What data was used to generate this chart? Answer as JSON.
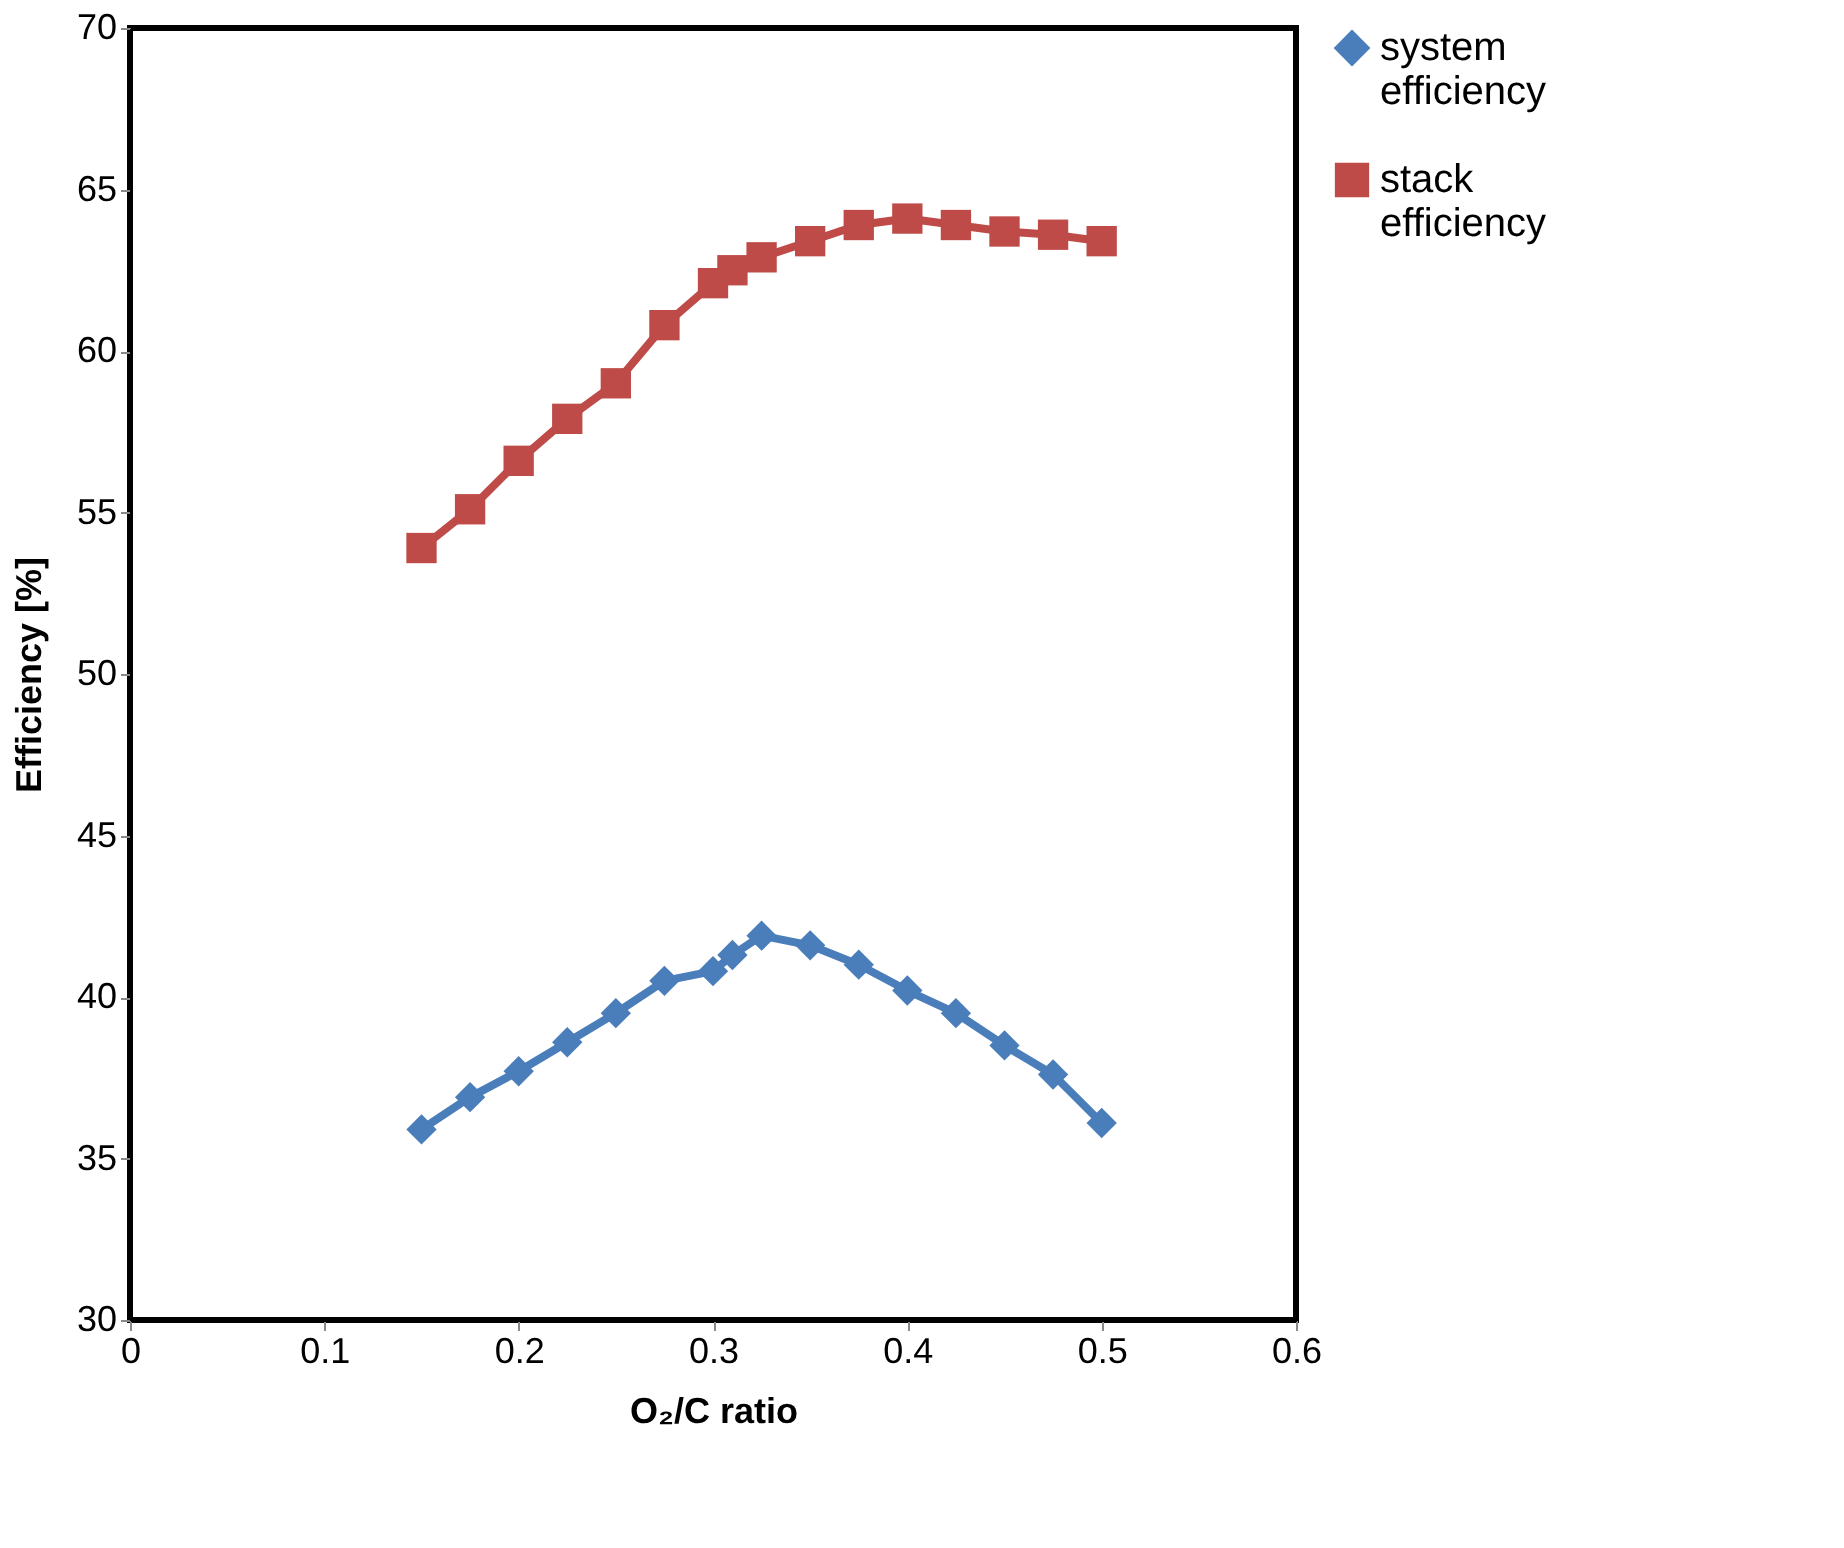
{
  "chart_data": {
    "type": "line",
    "xlabel": "O₂/C ratio",
    "ylabel": "Efficiency [%]",
    "x": [
      0.15,
      0.175,
      0.2,
      0.225,
      0.25,
      0.275,
      0.3,
      0.31,
      0.325,
      0.35,
      0.375,
      0.4,
      0.425,
      0.45,
      0.475,
      0.5
    ],
    "series": [
      {
        "name": "system efficiency",
        "color": "#4a7ebb",
        "marker": "diamond",
        "values": [
          35.9,
          36.9,
          37.7,
          38.6,
          39.5,
          40.5,
          40.8,
          41.3,
          41.9,
          41.6,
          41.0,
          40.2,
          39.5,
          38.5,
          37.6,
          36.1
        ]
      },
      {
        "name": "stack efficiency",
        "color": "#be4b48",
        "marker": "square",
        "values": [
          53.9,
          55.1,
          56.6,
          57.9,
          59.0,
          60.8,
          62.1,
          62.5,
          62.9,
          63.4,
          63.9,
          64.1,
          63.9,
          63.7,
          63.6,
          63.4
        ]
      }
    ],
    "xlim": [
      0,
      0.6
    ],
    "xticks": [
      0,
      0.1,
      0.2,
      0.3,
      0.4,
      0.5,
      0.6
    ],
    "ylim": [
      30,
      70
    ],
    "yticks": [
      30,
      35,
      40,
      45,
      50,
      55,
      60,
      65,
      70
    ],
    "grid": false,
    "legend": "top right",
    "line_style": "solid"
  }
}
